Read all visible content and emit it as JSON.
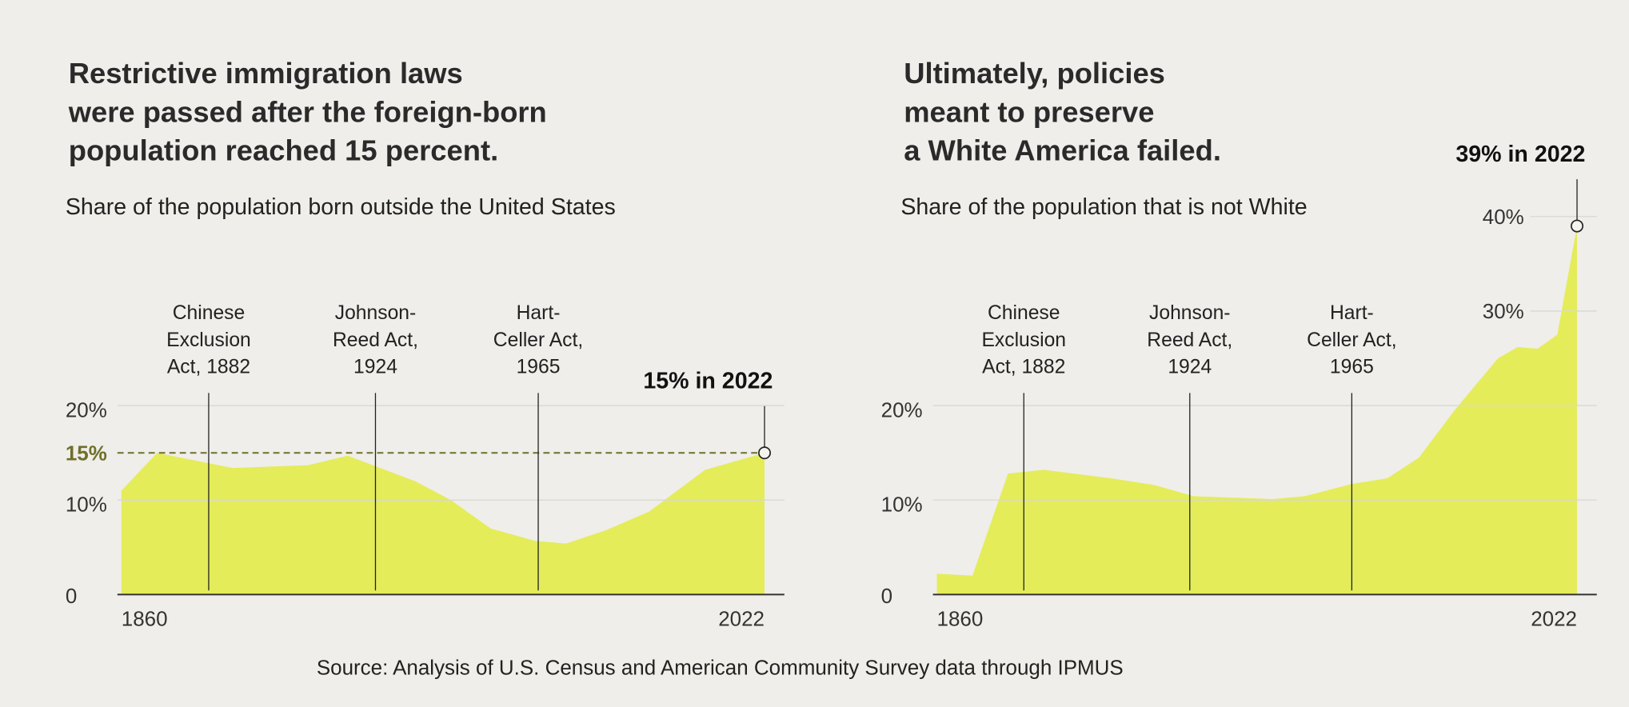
{
  "chart_data": [
    {
      "type": "area",
      "title": [
        "Restrictive immigration laws",
        "were passed after the foreign-born",
        "population reached 15 percent."
      ],
      "subtitle": "Share of the population born outside the United States",
      "x": [
        1860,
        1869,
        1888,
        1907,
        1917,
        1934,
        1943,
        1953,
        1964,
        1972,
        1982,
        1993,
        2007,
        2022
      ],
      "values": [
        11,
        15,
        13.4,
        13.7,
        14.7,
        12,
        10,
        7,
        5.7,
        5.4,
        6.8,
        8.8,
        13.2,
        15
      ],
      "color": "#e4ec5a",
      "xlim": [
        1859,
        2027
      ],
      "xticks": [
        1860,
        2022
      ],
      "ylim": [
        0,
        22
      ],
      "yticks": [
        0,
        {
          "value": 10,
          "label": "10%"
        },
        {
          "value": 20,
          "label": "20%"
        }
      ],
      "grid": true,
      "reference_line": {
        "value": 15,
        "label": "15%",
        "color": "#6f6f2a"
      },
      "callout": "15% in 2022",
      "events": [
        {
          "x": 1882,
          "label": [
            "Chinese",
            "Exclusion",
            "Act, 1882"
          ]
        },
        {
          "x": 1924,
          "label": [
            "Johnson-",
            "Reed Act,",
            "1924"
          ]
        },
        {
          "x": 1965,
          "label": [
            "Hart-",
            "Celler Act,",
            "1965"
          ]
        }
      ]
    },
    {
      "type": "area",
      "title": [
        "Ultimately, policies",
        "meant to preserve",
        "a White America failed."
      ],
      "subtitle": "Share of the population that is not White",
      "x": [
        1860,
        1869,
        1878,
        1887,
        1904,
        1915,
        1925,
        1945,
        1953,
        1965,
        1974,
        1982,
        1991,
        2002,
        2007,
        2012,
        2017,
        2022
      ],
      "values": [
        2.2,
        2,
        12.8,
        13.2,
        12.3,
        11.6,
        10.4,
        10.1,
        10.4,
        11.7,
        12.3,
        14.5,
        19.5,
        25,
        26.2,
        26,
        27.5,
        39
      ],
      "color": "#e4ec5a",
      "xlim": [
        1859,
        2027
      ],
      "xticks": [
        1860,
        2022
      ],
      "ylim": [
        0,
        42
      ],
      "yticks": [
        0,
        {
          "value": 10,
          "label": "10%"
        },
        {
          "value": 20,
          "label": "20%"
        },
        {
          "value": 30,
          "label": "30%"
        },
        {
          "value": 40,
          "label": "40%"
        }
      ],
      "grid": true,
      "callout": "39% in 2022",
      "events": [
        {
          "x": 1882,
          "label": [
            "Chinese",
            "Exclusion",
            "Act, 1882"
          ]
        },
        {
          "x": 1924,
          "label": [
            "Johnson-",
            "Reed Act,",
            "1924"
          ]
        },
        {
          "x": 1965,
          "label": [
            "Hart-",
            "Celler Act,",
            "1965"
          ]
        }
      ]
    }
  ],
  "source": "Source: Analysis of U.S. Census and American Community Survey data through IPMUS"
}
